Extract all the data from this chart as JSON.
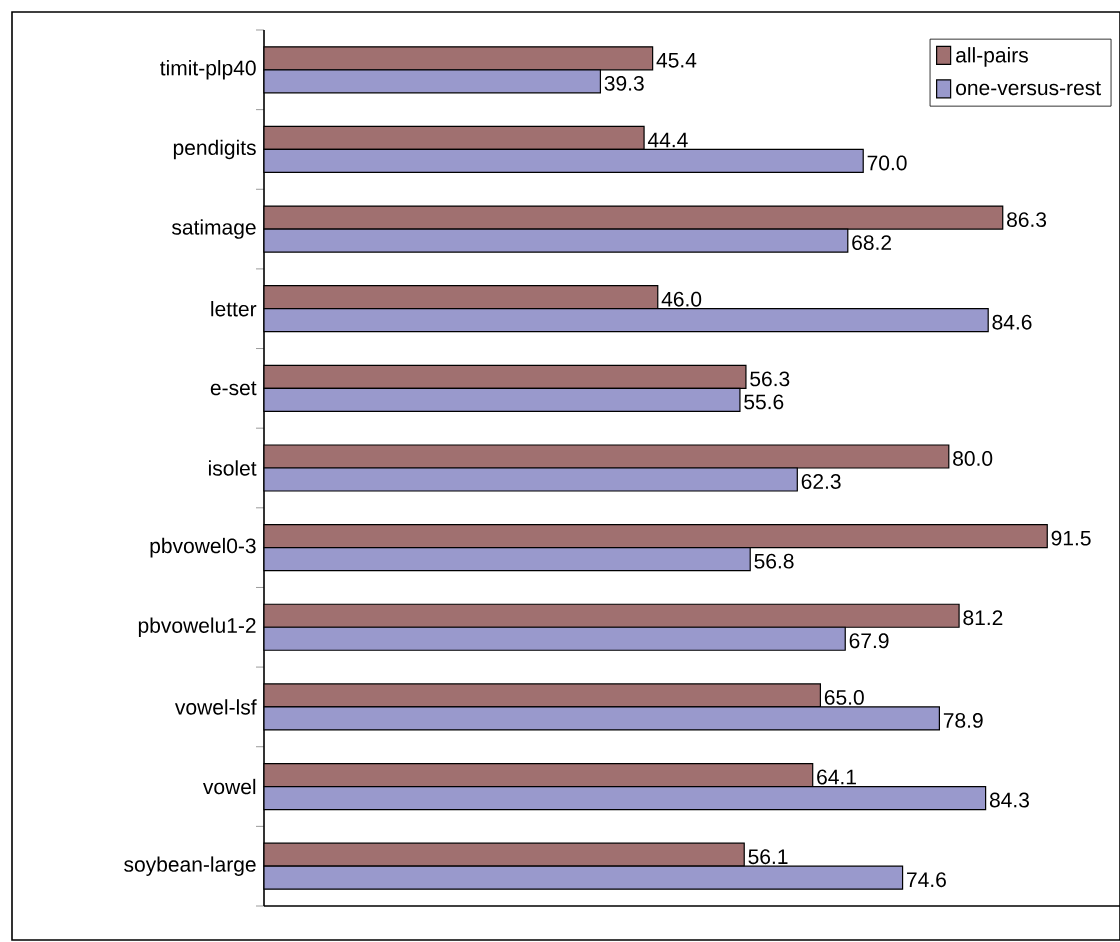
{
  "chart_data": {
    "type": "bar",
    "orientation": "horizontal",
    "categories": [
      "timit-plp40",
      "pendigits",
      "satimage",
      "letter",
      "e-set",
      "isolet",
      "pbvowel0-3",
      "pbvowelu1-2",
      "vowel-lsf",
      "vowel",
      "soybean-large"
    ],
    "series": [
      {
        "name": "all-pairs",
        "color": "#a07070",
        "values": [
          45.4,
          44.4,
          86.3,
          46.0,
          56.3,
          80.0,
          91.5,
          81.2,
          65.0,
          64.1,
          56.1
        ],
        "value_labels": [
          "45.4",
          "44.4",
          "86.3",
          "46.0",
          "56.3",
          "80.0",
          "91.5",
          "81.2",
          "65.0",
          "64.1",
          "56.1"
        ]
      },
      {
        "name": "one-versus-rest",
        "color": "#9999cc",
        "values": [
          39.3,
          70.0,
          68.2,
          84.6,
          55.6,
          62.3,
          56.8,
          67.9,
          78.9,
          84.3,
          74.6
        ],
        "value_labels": [
          "39.3",
          "70.0",
          "68.2",
          "84.6",
          "55.6",
          "62.3",
          "56.8",
          "67.9",
          "78.9",
          "84.3",
          "74.6"
        ]
      }
    ],
    "xlim": [
      0,
      100
    ],
    "legend": "top right"
  }
}
